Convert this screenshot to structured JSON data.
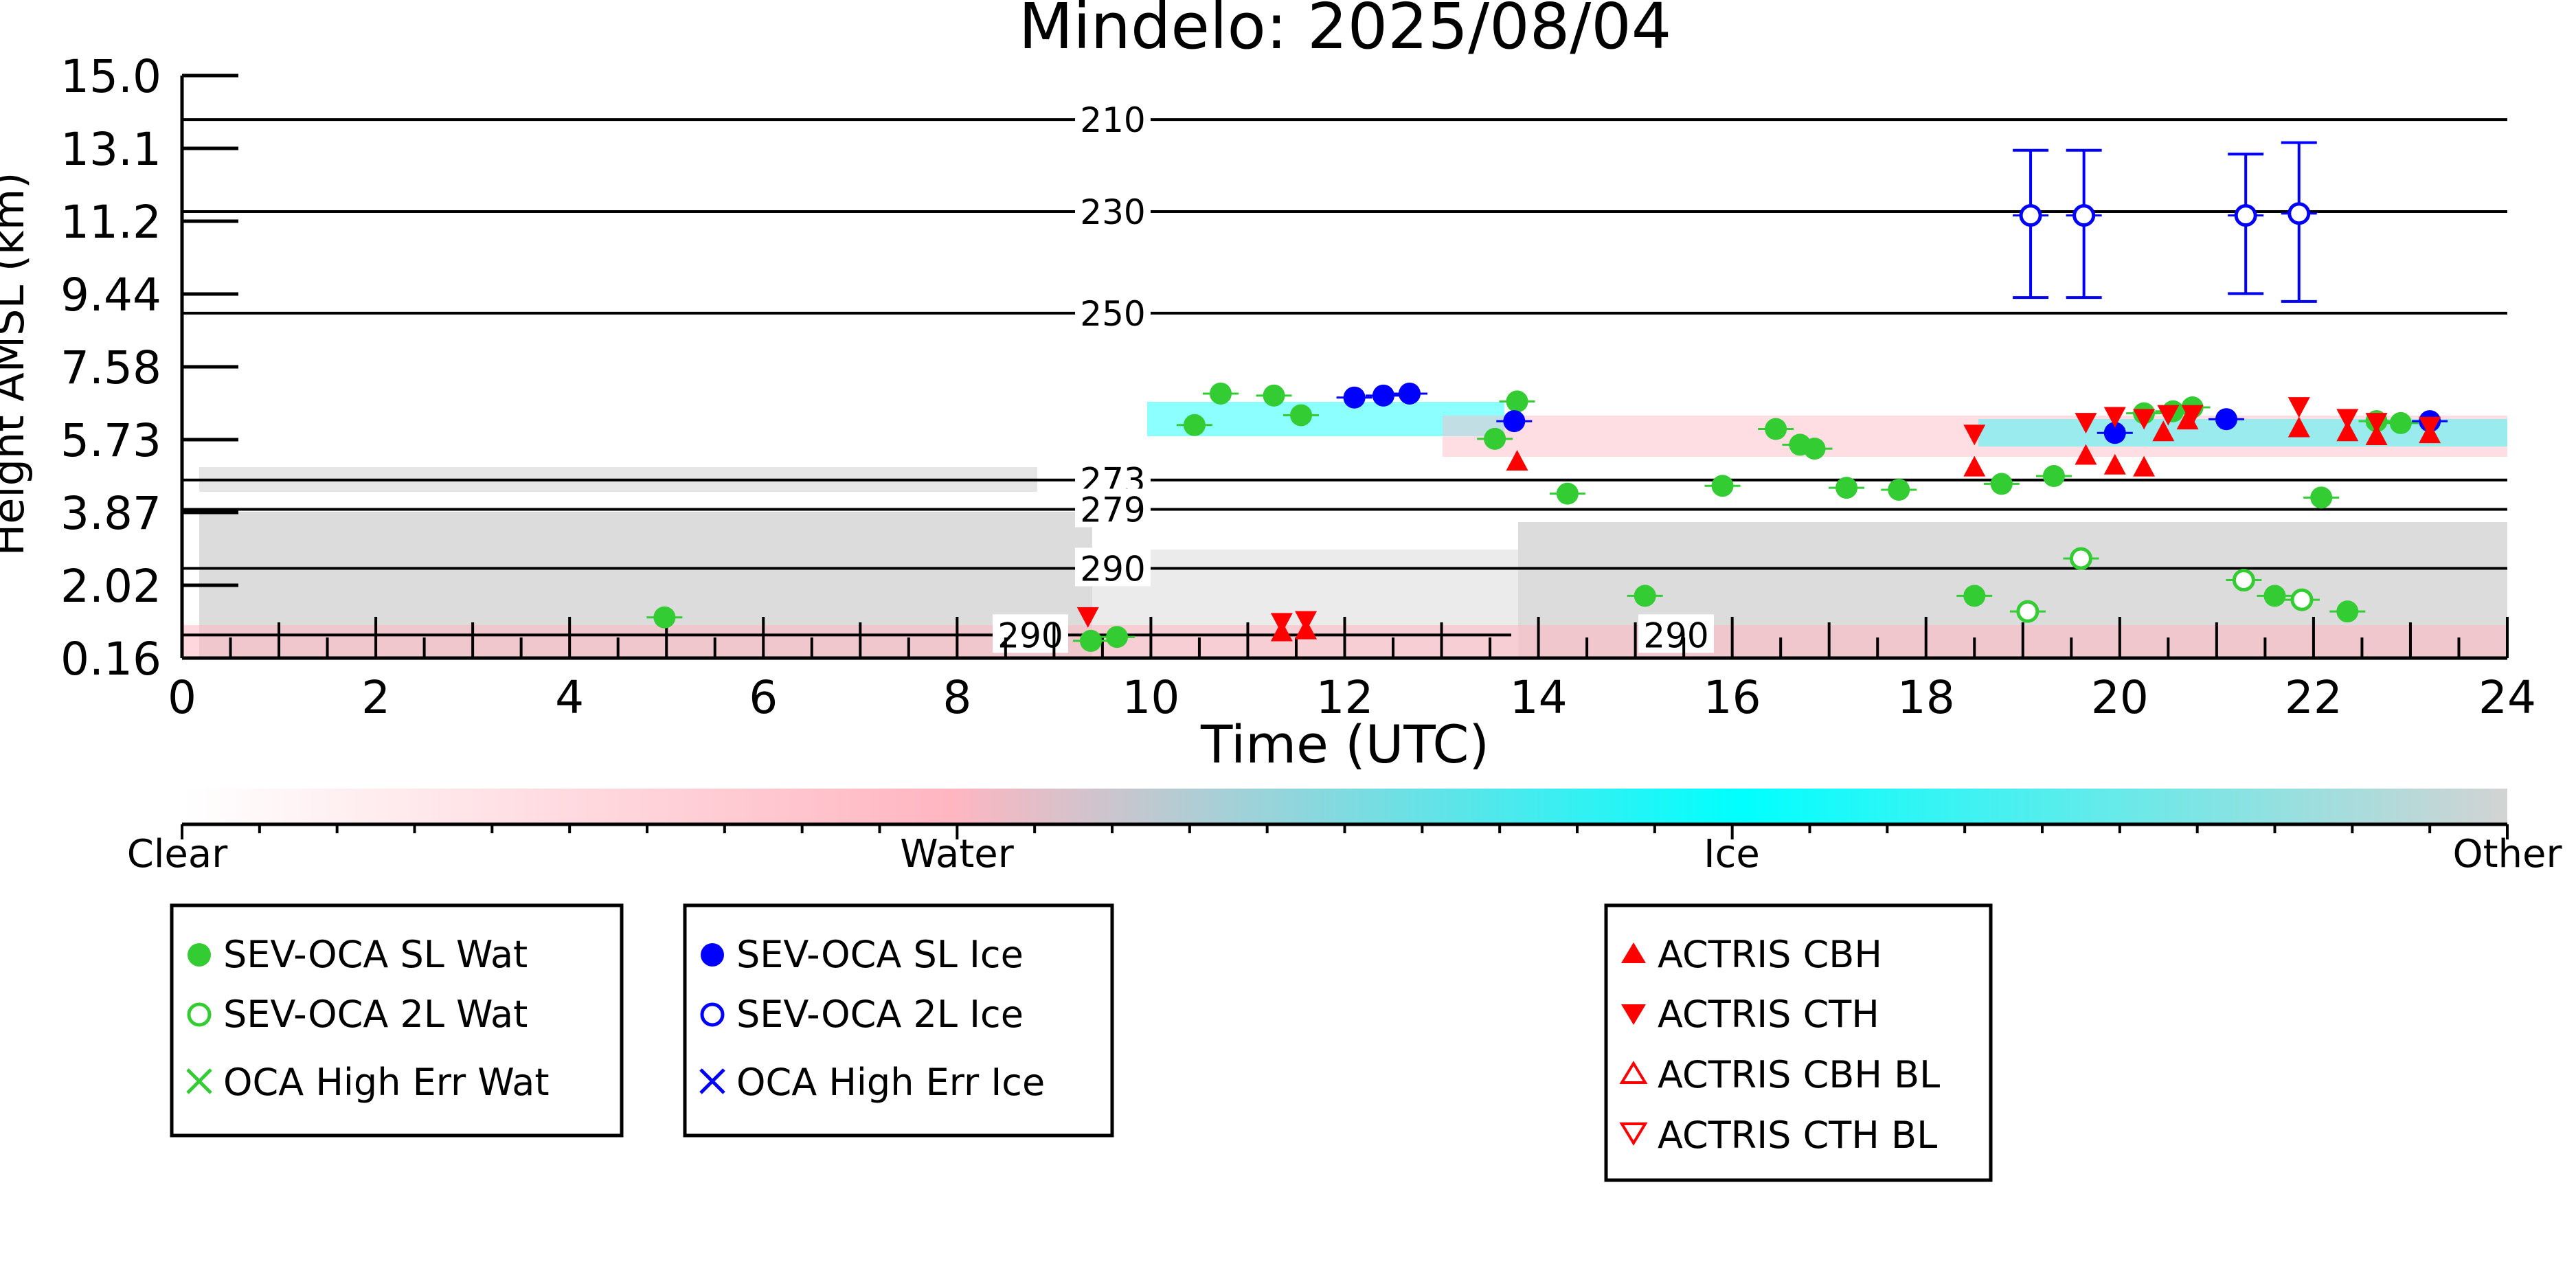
{
  "chart_data": {
    "type": "scatter",
    "title": "Mindelo: 2025/08/04",
    "xlabel": "Time (UTC)",
    "ylabel": "Height AMSL (km)",
    "xlim": [
      0,
      24
    ],
    "ylim": [
      0.16,
      15.0
    ],
    "x_ticks": [
      "0",
      "2",
      "4",
      "6",
      "8",
      "10",
      "12",
      "14",
      "16",
      "18",
      "20",
      "22",
      "24"
    ],
    "y_ticks": [
      "0.16",
      "2.02",
      "3.87",
      "5.73",
      "7.58",
      "9.44",
      "11.2",
      "13.1",
      "15.0"
    ],
    "colorbar": {
      "labels": [
        "Clear",
        "Water",
        "Ice",
        "Other"
      ],
      "colors": [
        "#ffffff",
        "#ffb6c1",
        "#00ffff",
        "#d3d3d3"
      ]
    },
    "isotherms": [
      {
        "label": "210",
        "height_km": 13.85
      },
      {
        "label": "230",
        "height_km": 11.45
      },
      {
        "label": "250",
        "height_km": 8.95
      },
      {
        "label": "273",
        "height_km": 4.7
      },
      {
        "label": "279",
        "height_km": 3.95
      },
      {
        "label": "290",
        "height_km": 2.45
      },
      {
        "label": "290",
        "height_km": 0.75
      },
      {
        "label": "290",
        "height_km": 0.75
      }
    ],
    "legends": [
      {
        "entries": [
          "SEV-OCA SL Wat",
          "SEV-OCA 2L Wat",
          "OCA High Err Wat"
        ]
      },
      {
        "entries": [
          "SEV-OCA SL Ice",
          "SEV-OCA 2L Ice",
          "OCA High Err Ice"
        ]
      },
      {
        "entries": [
          "ACTRIS CBH",
          "ACTRIS CTH",
          "ACTRIS CBH BL",
          "ACTRIS CTH BL"
        ]
      }
    ],
    "series": [
      {
        "name": "SEV-OCA SL Wat",
        "color": "#33cc33",
        "marker": "filled-circle",
        "points": [
          [
            4.98,
            1.2
          ],
          [
            9.38,
            0.6
          ],
          [
            9.65,
            0.7
          ],
          [
            10.45,
            6.1
          ],
          [
            10.72,
            6.9
          ],
          [
            11.27,
            6.85
          ],
          [
            11.55,
            6.35
          ],
          [
            13.55,
            5.75
          ],
          [
            13.78,
            6.7
          ],
          [
            14.3,
            4.35
          ],
          [
            15.1,
            1.75
          ],
          [
            15.9,
            4.55
          ],
          [
            16.45,
            6.0
          ],
          [
            16.7,
            5.6
          ],
          [
            16.85,
            5.5
          ],
          [
            17.18,
            4.5
          ],
          [
            17.72,
            4.45
          ],
          [
            18.5,
            1.75
          ],
          [
            18.78,
            4.6
          ],
          [
            19.32,
            4.8
          ],
          [
            20.25,
            6.4
          ],
          [
            20.55,
            6.45
          ],
          [
            20.75,
            6.55
          ],
          [
            21.6,
            1.75
          ],
          [
            22.08,
            4.25
          ],
          [
            22.35,
            1.35
          ],
          [
            22.65,
            6.2
          ],
          [
            22.9,
            6.15
          ]
        ]
      },
      {
        "name": "SEV-OCA 2L Wat",
        "color": "#33cc33",
        "marker": "open-circle",
        "points": [
          [
            19.05,
            1.35
          ],
          [
            19.6,
            2.7
          ],
          [
            21.28,
            2.15
          ],
          [
            21.88,
            1.65
          ]
        ]
      },
      {
        "name": "SEV-OCA SL Ice",
        "color": "#0000ff",
        "marker": "filled-circle",
        "points": [
          [
            12.1,
            6.8
          ],
          [
            12.4,
            6.85
          ],
          [
            12.67,
            6.9
          ],
          [
            13.75,
            6.2
          ],
          [
            19.95,
            5.9
          ],
          [
            21.1,
            6.25
          ],
          [
            23.2,
            6.2
          ]
        ]
      },
      {
        "name": "SEV-OCA 2L Ice",
        "color": "#0000ff",
        "marker": "open-circle",
        "points": [
          [
            19.08,
            11.35
          ],
          [
            19.63,
            11.35
          ],
          [
            21.3,
            11.35
          ],
          [
            21.85,
            11.4
          ]
        ]
      },
      {
        "name": "ACTRIS CBH",
        "color": "#ff0000",
        "marker": "triangle-up",
        "points": [
          [
            13.78,
            5.15
          ],
          [
            11.35,
            0.8
          ],
          [
            11.6,
            0.85
          ],
          [
            18.5,
            5.0
          ],
          [
            19.65,
            5.3
          ],
          [
            19.95,
            5.05
          ],
          [
            20.25,
            5.0
          ],
          [
            20.45,
            5.9
          ],
          [
            20.7,
            6.2
          ],
          [
            21.85,
            6.0
          ],
          [
            22.35,
            5.9
          ],
          [
            22.65,
            5.8
          ],
          [
            23.2,
            5.85
          ]
        ]
      },
      {
        "name": "ACTRIS CTH",
        "color": "#ff0000",
        "marker": "triangle-down",
        "points": [
          [
            9.35,
            1.25
          ],
          [
            11.35,
            1.1
          ],
          [
            11.6,
            1.15
          ],
          [
            18.5,
            5.9
          ],
          [
            19.65,
            6.2
          ],
          [
            19.95,
            6.35
          ],
          [
            20.25,
            6.3
          ],
          [
            20.5,
            6.4
          ],
          [
            20.75,
            6.4
          ],
          [
            21.85,
            6.6
          ],
          [
            22.35,
            6.3
          ],
          [
            22.65,
            6.2
          ],
          [
            23.2,
            6.1
          ]
        ]
      }
    ],
    "error_bars": {
      "SEV-OCA 2L Ice": [
        [
          9.35,
          13.05
        ],
        [
          9.35,
          13.05
        ],
        [
          9.45,
          12.95
        ],
        [
          9.25,
          13.25
        ]
      ]
    }
  }
}
